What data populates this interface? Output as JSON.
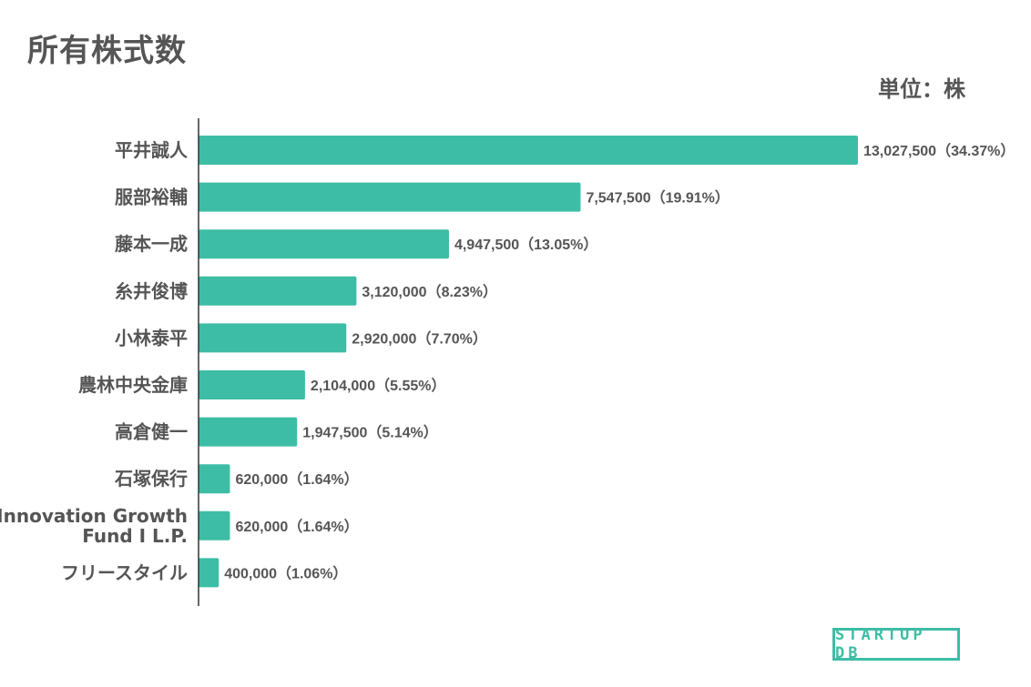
{
  "title": "所有株式数",
  "unit_label": "単位：株",
  "logo_text": "STARTUP DB",
  "colors": {
    "bar": "#3dbda5",
    "text": "#555555",
    "axis": "#333333"
  },
  "chart_data": {
    "type": "bar",
    "orientation": "horizontal",
    "title": "所有株式数",
    "xlabel": "",
    "ylabel": "",
    "unit": "株",
    "xlim": [
      0,
      13027500
    ],
    "categories": [
      [
        "平井誠人"
      ],
      [
        "服部裕輔"
      ],
      [
        "藤本一成"
      ],
      [
        "糸井俊博"
      ],
      [
        "小林泰平"
      ],
      [
        "農林中央金庫"
      ],
      [
        "高倉健一"
      ],
      [
        "石塚保行"
      ],
      [
        "Innovation Growth",
        "Fund I L.P."
      ],
      [
        "フリースタイル"
      ]
    ],
    "values": [
      13027500,
      7547500,
      4947500,
      3120000,
      2920000,
      2104000,
      1947500,
      620000,
      620000,
      400000
    ],
    "data_labels": [
      "13,027,500（34.37%）",
      "7,547,500（19.91%）",
      "4,947,500（13.05%）",
      "3,120,000（8.23%）",
      "2,920,000（7.70%）",
      "2,104,000（5.55%）",
      "1,947,500（5.14%）",
      "620,000（1.64%）",
      "620,000（1.64%）",
      "400,000（1.06%）"
    ]
  }
}
